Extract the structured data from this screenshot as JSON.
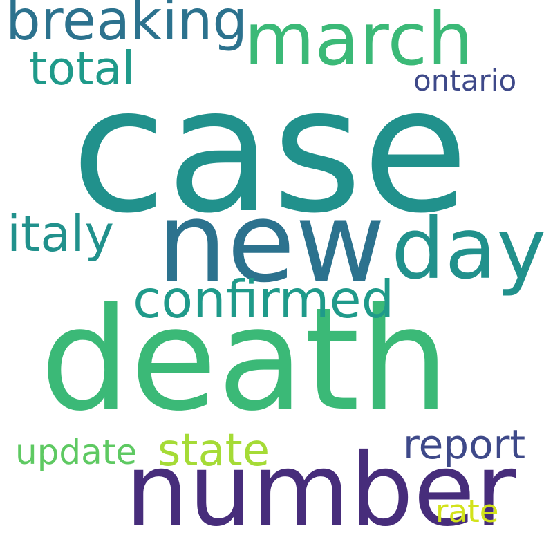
{
  "words": [
    {
      "text": "case",
      "color": "#21918c"
    },
    {
      "text": "death",
      "color": "#3bb977"
    },
    {
      "text": "new",
      "color": "#2c728e"
    },
    {
      "text": "number",
      "color": "#472d7b"
    },
    {
      "text": "day",
      "color": "#21918c"
    },
    {
      "text": "march",
      "color": "#3bb977"
    },
    {
      "text": "breaking",
      "color": "#2c728e"
    },
    {
      "text": "confirmed",
      "color": "#1f9a8a"
    },
    {
      "text": "italy",
      "color": "#21918c"
    },
    {
      "text": "total",
      "color": "#1f9a8a"
    },
    {
      "text": "state",
      "color": "#a5db36"
    },
    {
      "text": "report",
      "color": "#3e4989"
    },
    {
      "text": "update",
      "color": "#5ec962"
    },
    {
      "text": "ontario",
      "color": "#3e4989"
    },
    {
      "text": "rate",
      "color": "#d2e21b"
    }
  ]
}
